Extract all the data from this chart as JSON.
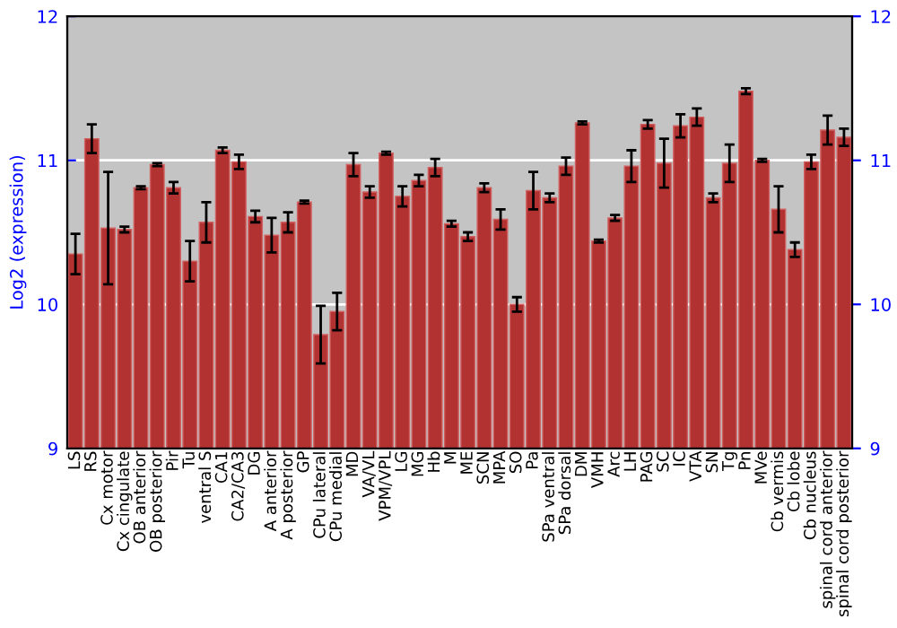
{
  "chart_data": {
    "type": "bar",
    "categories": [
      "LS",
      "RS",
      "Cx motor",
      "Cx cingulate",
      "OB anterior",
      "OB posterior",
      "Pir",
      "Tu",
      "ventral S",
      "CA1",
      "CA2/CA3",
      "DG",
      "A anterior",
      "A posterior",
      "GP",
      "CPu lateral",
      "CPu medial",
      "MD",
      "VA/VL",
      "VPM/VPL",
      "LG",
      "MG",
      "Hb",
      "M",
      "ME",
      "SCN",
      "MPA",
      "SO",
      "Pa",
      "SPa ventral",
      "SPa dorsal",
      "DM",
      "VMH",
      "Arc",
      "LH",
      "PAG",
      "SC",
      "IC",
      "VTA",
      "SN",
      "Tg",
      "Pn",
      "MVe",
      "Cb vermis",
      "Cb lobe",
      "Cb nucleus",
      "spinal cord anterior",
      "spinal cord posterior"
    ],
    "values": [
      10.35,
      11.15,
      10.53,
      10.52,
      10.81,
      10.97,
      10.81,
      10.3,
      10.57,
      11.07,
      10.99,
      10.61,
      10.48,
      10.57,
      10.71,
      9.79,
      9.95,
      10.97,
      10.78,
      11.05,
      10.75,
      10.86,
      10.95,
      10.56,
      10.47,
      10.81,
      10.59,
      10.0,
      10.79,
      10.74,
      10.96,
      11.26,
      10.44,
      10.6,
      10.96,
      11.25,
      10.98,
      11.24,
      11.3,
      10.74,
      10.98,
      11.48,
      11.0,
      10.66,
      10.38,
      10.99,
      11.21,
      11.16
    ],
    "errors": [
      0.14,
      0.1,
      0.39,
      0.02,
      0.01,
      0.01,
      0.04,
      0.14,
      0.14,
      0.02,
      0.05,
      0.04,
      0.12,
      0.07,
      0.01,
      0.2,
      0.13,
      0.08,
      0.04,
      0.01,
      0.07,
      0.04,
      0.06,
      0.02,
      0.03,
      0.03,
      0.07,
      0.05,
      0.13,
      0.03,
      0.06,
      0.01,
      0.01,
      0.02,
      0.11,
      0.03,
      0.17,
      0.08,
      0.06,
      0.03,
      0.13,
      0.02,
      0.01,
      0.16,
      0.05,
      0.05,
      0.1,
      0.06
    ],
    "color": "#b23232",
    "ylabel": "Log2 (expression)",
    "ylim": [
      9,
      12
    ],
    "yticks": [
      9,
      10,
      11,
      12
    ],
    "y2lim": [
      9,
      12
    ],
    "y2ticks": [
      9,
      10,
      11,
      12
    ],
    "grid": "y",
    "legend": false
  }
}
